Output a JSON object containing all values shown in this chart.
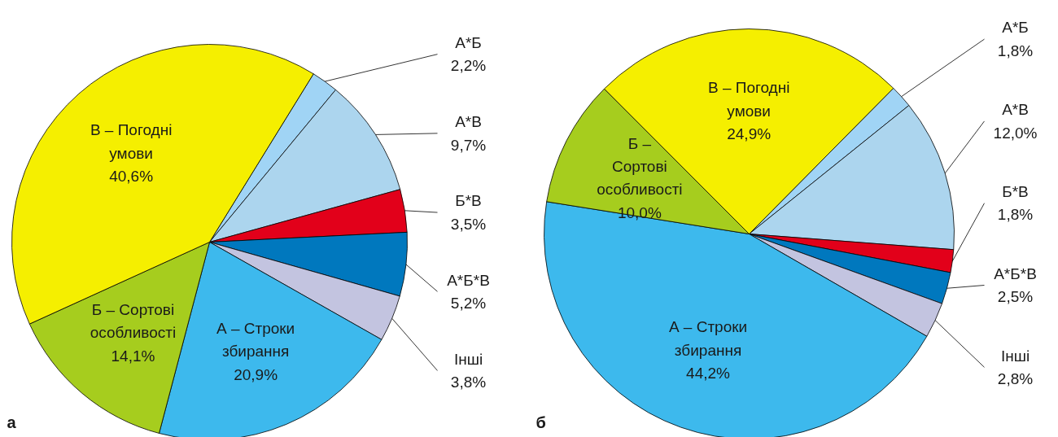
{
  "chart_data": [
    {
      "type": "pie",
      "title": "а",
      "categories": [
        "А*Б",
        "А*В",
        "Б*В",
        "А*Б*В",
        "Інші",
        "А – Строки збирання",
        "Б – Сортові особливості",
        "В – Погодні умови"
      ],
      "values": [
        2.2,
        9.7,
        3.5,
        5.2,
        3.8,
        20.9,
        14.1,
        40.6
      ],
      "colors": [
        "#a0d4f5",
        "#acd5ee",
        "#e2001a",
        "#0078be",
        "#c3c4e0",
        "#3db9ed",
        "#a6cd1e",
        "#f5ef00"
      ],
      "value_labels": [
        "2,2%",
        "9,7%",
        "3,5%",
        "5,2%",
        "3,8%",
        "20,9%",
        "14,1%",
        "40,6%"
      ]
    },
    {
      "type": "pie",
      "title": "б",
      "categories": [
        "А*Б",
        "А*В",
        "Б*В",
        "А*Б*В",
        "Інші",
        "А – Строки збирання",
        "Б – Сортові особливості",
        "В – Погодні умови"
      ],
      "values": [
        1.8,
        12.0,
        1.8,
        2.5,
        2.8,
        44.2,
        10.0,
        24.9
      ],
      "colors": [
        "#a0d4f5",
        "#acd5ee",
        "#e2001a",
        "#0078be",
        "#c3c4e0",
        "#3db9ed",
        "#a6cd1e",
        "#f5ef00"
      ],
      "value_labels": [
        "1,8%",
        "12,0%",
        "1,8%",
        "2,5%",
        "2,8%",
        "44,2%",
        "10,0%",
        "24,9%"
      ]
    }
  ]
}
